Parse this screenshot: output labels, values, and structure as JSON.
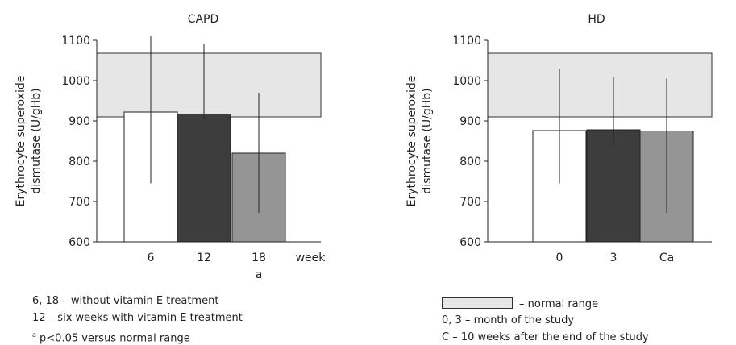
{
  "chart_data": [
    {
      "type": "bar",
      "title": "CAPD",
      "ylabel": "Erythrocyte superoxide dismutase (U/gHb)",
      "ylabel_lines": [
        "Erythrocyte superoxide",
        "dismutase (U/gHb)"
      ],
      "ylim": [
        600,
        1100
      ],
      "yticks": [
        600,
        700,
        800,
        900,
        1000,
        1100
      ],
      "normal_range": [
        910,
        1068
      ],
      "categories": [
        "6",
        "12",
        "18"
      ],
      "values": [
        922,
        917,
        820
      ],
      "error_low": [
        745,
        905,
        672
      ],
      "error_high": [
        1110,
        1090,
        970
      ],
      "bar_colors": [
        "#ffffff",
        "#3d3d3d",
        "#959595"
      ],
      "xunit": "week",
      "annotation": "a"
    },
    {
      "type": "bar",
      "title": "HD",
      "ylabel": "Erythrocyte superoxide dismutase (U/gHb)",
      "ylabel_lines": [
        "Erythrocyte superoxide",
        "dismutase (U/gHb)"
      ],
      "ylim": [
        600,
        1100
      ],
      "yticks": [
        600,
        700,
        800,
        900,
        1000,
        1100
      ],
      "normal_range": [
        910,
        1068
      ],
      "categories": [
        "0",
        "3",
        "Ca"
      ],
      "values": [
        876,
        878,
        875
      ],
      "error_low": [
        745,
        836,
        672
      ],
      "error_high": [
        1030,
        1008,
        1005
      ],
      "bar_colors": [
        "#ffffff",
        "#3d3d3d",
        "#959595"
      ],
      "xunit": "",
      "annotation": ""
    }
  ],
  "notes_left": {
    "line1": "6, 18 – without vitamin E treatment",
    "line2": "12 – six weeks with vitamin E treatment",
    "line3_sup": "a",
    "line3": " p<0.05 versus normal range"
  },
  "notes_right": {
    "legend_label": "– normal range",
    "line1": "0, 3 – month of the study",
    "line2": "C – 10 weeks after the end of the study"
  }
}
